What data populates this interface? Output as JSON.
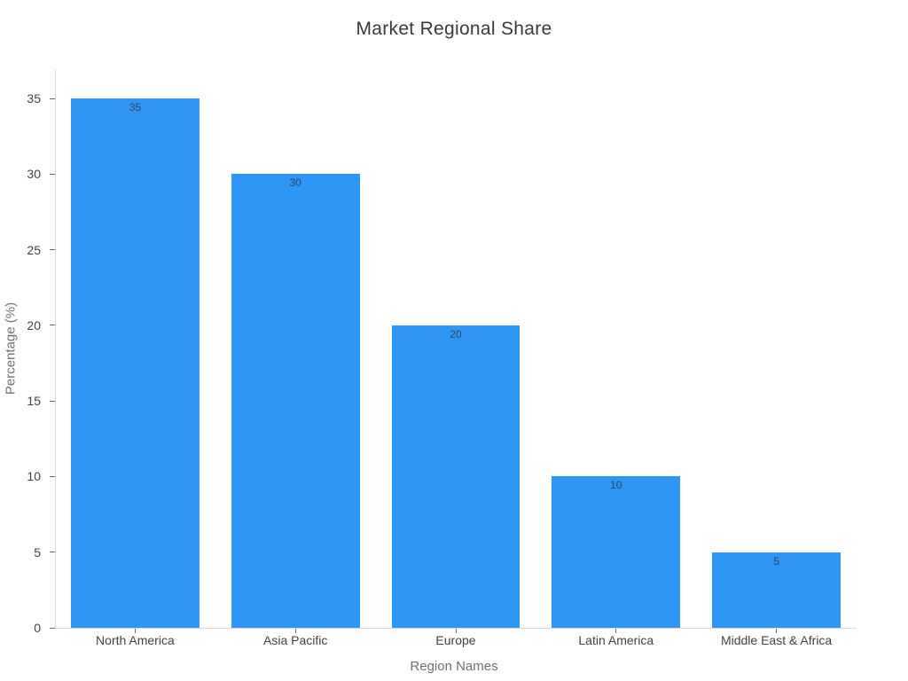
{
  "chart_data": {
    "type": "bar",
    "title": "Market Regional Share",
    "xlabel": "Region Names",
    "ylabel": "Percentage (%)",
    "categories": [
      "North America",
      "Asia Pacific",
      "Europe",
      "Latin America",
      "Middle East & Africa"
    ],
    "values": [
      35,
      30,
      20,
      10,
      5
    ],
    "bar_labels": [
      "35",
      "30",
      "20",
      "10",
      "5"
    ],
    "ylim": [
      0,
      35
    ],
    "yticks": [
      0,
      5,
      10,
      15,
      20,
      25,
      30,
      35
    ],
    "grid": false,
    "legend_position": "none",
    "bar_color": "#2e96f5",
    "colors": {
      "background": "#ffffff",
      "bar": "#2e96f5",
      "title_text": "#363a3e",
      "tick_text": "#404347",
      "axis_title_text": "#6e7073",
      "bar_value_text": "#30455f",
      "axis_line": "#d9d9d9",
      "tick_mark": "#68696b"
    }
  }
}
